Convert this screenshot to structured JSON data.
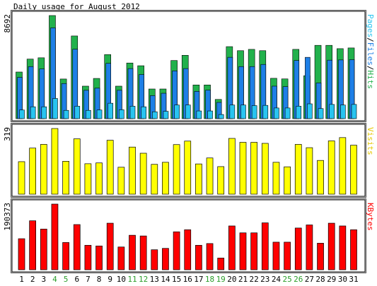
{
  "chart_data": {
    "type": "bar",
    "title": "Daily usage for August 2012",
    "categories": [
      "1",
      "2",
      "3",
      "4",
      "5",
      "6",
      "7",
      "8",
      "9",
      "10",
      "11",
      "12",
      "13",
      "14",
      "15",
      "16",
      "17",
      "18",
      "19",
      "20",
      "21",
      "22",
      "23",
      "24",
      "25",
      "26",
      "27",
      "28",
      "29",
      "30",
      "31"
    ],
    "weekend_days": [
      "4",
      "5",
      "11",
      "12",
      "18",
      "19",
      "25",
      "26"
    ],
    "colors": {
      "hits": "#22b14c",
      "files": "#1e7fe6",
      "pages": "#29c4f0",
      "visits": "#ffff00",
      "kbytes": "#ff0000",
      "weekend_label": "#2a9d2a",
      "weekday_label": "#000000"
    },
    "panels": [
      {
        "id": "hits-panel",
        "max_label": "8692",
        "ymax": 8692,
        "legend": [
          {
            "text": "Pages",
            "color": "#29c4f0"
          },
          {
            "text": "/",
            "color": "#000000"
          },
          {
            "text": "Files",
            "color": "#1e7fe6"
          },
          {
            "text": "/",
            "color": "#000000"
          },
          {
            "text": "Hits",
            "color": "#22b14c"
          }
        ],
        "series": [
          {
            "name": "Hits",
            "color": "#22b14c",
            "values": [
              3930,
              5020,
              5130,
              8692,
              3340,
              6970,
              2740,
              3390,
              5400,
              2740,
              4690,
              4460,
              2500,
              2500,
              4900,
              5340,
              2840,
              2840,
              1620,
              6070,
              5730,
              5840,
              5730,
              3400,
              3350,
              5840,
              3620,
              6180,
              6180,
              5900,
              5960
            ]
          },
          {
            "name": "Files",
            "color": "#1e7fe6",
            "values": [
              3480,
              4390,
              4190,
              7650,
              2960,
              5850,
              2390,
              2570,
              4660,
              2390,
              4220,
              3720,
              1940,
              2140,
              4030,
              4220,
              2300,
              2400,
              1370,
              5170,
              4390,
              4390,
              4570,
              2740,
              2700,
              4900,
              5170,
              3010,
              4930,
              4950,
              4970
            ]
          },
          {
            "name": "Pages",
            "color": "#29c4f0",
            "values": [
              730,
              1000,
              1000,
              1700,
              700,
              1050,
              700,
              730,
              1300,
              750,
              1050,
              1000,
              580,
              620,
              1150,
              1150,
              650,
              650,
              350,
              1150,
              1150,
              1100,
              1120,
              900,
              900,
              1050,
              1250,
              850,
              1200,
              1150,
              1200
            ]
          }
        ]
      },
      {
        "id": "visits-panel",
        "max_label": "319",
        "ymax": 319,
        "legend": [
          {
            "text": "Visits",
            "color": "#e6c700"
          }
        ],
        "series": [
          {
            "name": "Visits",
            "color": "#ffff00",
            "values": [
              158,
              224,
              242,
              319,
              160,
              269,
              148,
              152,
              262,
              131,
              229,
              199,
              145,
              155,
              241,
              258,
              147,
              176,
              134,
              271,
              252,
              252,
              247,
              155,
              133,
              242,
              226,
              164,
              259,
              275,
              238
            ]
          }
        ]
      },
      {
        "id": "kbytes-panel",
        "max_label": "190373",
        "ymax": 190373,
        "legend": [
          {
            "text": "KBytes",
            "color": "#ff0000"
          }
        ],
        "series": [
          {
            "name": "KBytes",
            "color": "#ff0000",
            "values": [
              90000,
              142000,
              118000,
              190373,
              79000,
              131000,
              71000,
              69000,
              135000,
              66000,
              100000,
              98000,
              58000,
              62000,
              110000,
              116000,
              71000,
              76000,
              34000,
              127000,
              107000,
              107000,
              136000,
              80000,
              80000,
              121000,
              130000,
              77000,
              135000,
              127000,
              116000
            ]
          }
        ]
      }
    ]
  }
}
